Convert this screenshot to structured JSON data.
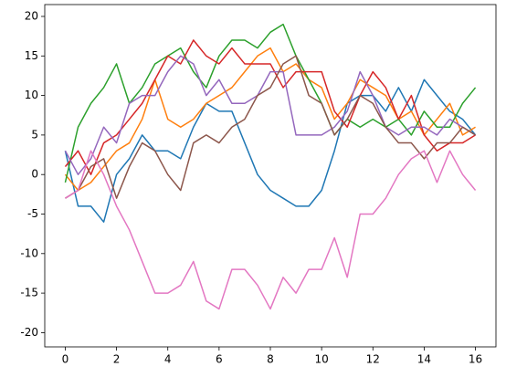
{
  "chart_data": {
    "type": "line",
    "x": [
      0,
      0.5,
      1,
      1.5,
      2,
      2.5,
      3,
      3.5,
      4,
      4.5,
      5,
      5.5,
      6,
      6.5,
      7,
      7.5,
      8,
      8.5,
      9,
      9.5,
      10,
      10.5,
      11,
      11.5,
      12,
      12.5,
      13,
      13.5,
      14,
      14.5,
      15,
      15.5,
      16
    ],
    "series": [
      {
        "color": "#1f77b4",
        "values": [
          3,
          -4,
          -4,
          -6,
          0,
          2,
          5,
          3,
          3,
          2,
          6,
          9,
          8,
          8,
          4,
          0,
          -2,
          -3,
          -4,
          -4,
          -2,
          3,
          9,
          10,
          10,
          8,
          11,
          8,
          12,
          10,
          8,
          7,
          5
        ]
      },
      {
        "color": "#ff7f0e",
        "values": [
          0,
          -2,
          -1,
          1,
          3,
          4,
          7,
          12,
          7,
          6,
          7,
          9,
          10,
          11,
          13,
          15,
          16,
          13,
          14,
          12,
          11,
          7,
          9,
          12,
          11,
          10,
          7,
          8,
          5,
          7,
          9,
          5,
          6
        ]
      },
      {
        "color": "#2ca02c",
        "values": [
          -1,
          6,
          9,
          11,
          14,
          9,
          11,
          14,
          15,
          16,
          13,
          11,
          15,
          17,
          17,
          16,
          18,
          19,
          15,
          12,
          9,
          5,
          7,
          6,
          7,
          6,
          7,
          5,
          8,
          6,
          6,
          9,
          11
        ]
      },
      {
        "color": "#d62728",
        "values": [
          1,
          3,
          0,
          4,
          5,
          7,
          9,
          12,
          15,
          14,
          17,
          15,
          14,
          16,
          14,
          14,
          14,
          11,
          13,
          13,
          13,
          8,
          6,
          10,
          13,
          11,
          7,
          10,
          5,
          3,
          4,
          4,
          5
        ]
      },
      {
        "color": "#9467bd",
        "values": [
          3,
          0,
          2,
          6,
          4,
          9,
          10,
          10,
          13,
          15,
          14,
          10,
          12,
          9,
          9,
          10,
          13,
          13,
          5,
          5,
          5,
          6,
          8,
          13,
          10,
          6,
          5,
          6,
          6,
          5,
          7,
          6,
          5
        ]
      },
      {
        "color": "#8c564b",
        "values": [
          -3,
          -2,
          1,
          2,
          -3,
          1,
          4,
          3,
          0,
          -2,
          4,
          5,
          4,
          6,
          7,
          10,
          11,
          14,
          15,
          10,
          9,
          5,
          7,
          10,
          9,
          6,
          4,
          4,
          2,
          4,
          4,
          6,
          5
        ]
      },
      {
        "color": "#e377c2",
        "values": [
          -3,
          -2,
          3,
          0,
          -4,
          -7,
          -11,
          -15,
          -15,
          -14,
          -11,
          -16,
          -17,
          -12,
          -12,
          -14,
          -17,
          -13,
          -15,
          -12,
          -12,
          -8,
          -13,
          -5,
          -5,
          -3,
          0,
          2,
          3,
          -1,
          3,
          0,
          -2
        ]
      }
    ],
    "xlim": [
      -0.8,
      16.8
    ],
    "ylim": [
      -21.8,
      21.5
    ],
    "xticks": [
      0,
      2,
      4,
      6,
      8,
      10,
      12,
      14,
      16
    ],
    "yticks": [
      -20,
      -15,
      -10,
      -5,
      0,
      5,
      10,
      15,
      20
    ]
  }
}
